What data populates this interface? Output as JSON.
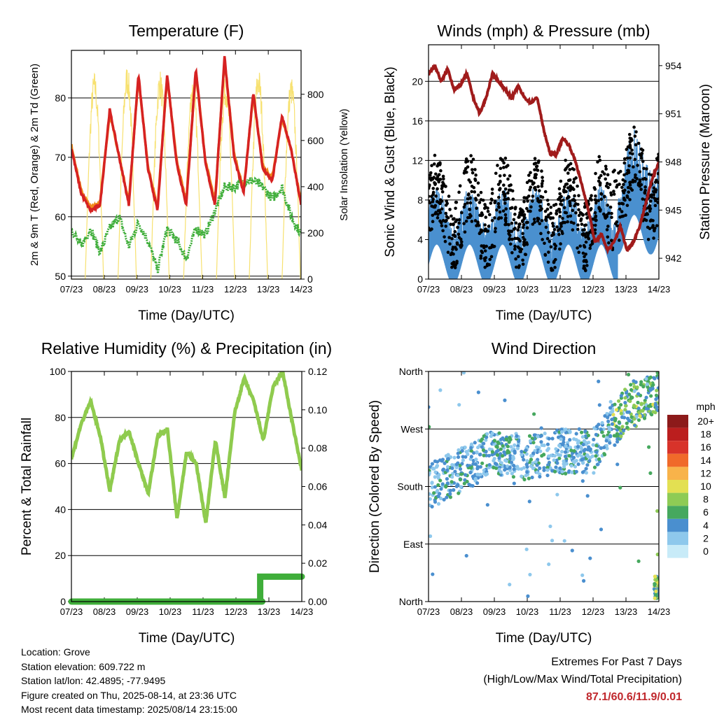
{
  "days": [
    "07/23",
    "08/23",
    "09/23",
    "10/23",
    "11/23",
    "12/23",
    "13/23",
    "14/23"
  ],
  "xlabel": "Time (Day/UTC)",
  "chart_data": [
    {
      "type": "line",
      "title": "Temperature (F)",
      "ylabel_left": "2m & 9m T (Red, Orange) & 2m Td (Green)",
      "ylabel_right": "Solar Insolation (Yellow)",
      "ylim_left": [
        49.5,
        88
      ],
      "yticks_left": [
        50,
        60,
        70,
        80
      ],
      "ylim_right": [
        0,
        990
      ],
      "yticks_right": [
        0,
        200,
        400,
        600,
        800
      ],
      "series": [
        {
          "color": "#d62222",
          "axis": "left",
          "values": [
            71.5,
            64,
            61,
            62,
            78,
            70,
            62,
            84,
            68,
            61,
            84,
            69,
            62,
            85,
            69,
            62,
            87,
            70,
            64,
            81,
            68,
            66,
            77,
            71,
            62
          ]
        },
        {
          "color": "#f08a1c",
          "axis": "left",
          "values": [
            72,
            64.5,
            61.5,
            62.5,
            77.5,
            70,
            62.5,
            83.5,
            68.5,
            61.5,
            83.5,
            69.5,
            62.5,
            84.5,
            69.5,
            62.5,
            86.5,
            70.5,
            64.5,
            80.5,
            68.5,
            66.5,
            76.5,
            71,
            62.5
          ]
        },
        {
          "color": "#3fae3a",
          "axis": "left",
          "values": [
            58,
            55,
            58,
            54,
            58,
            60,
            55,
            59,
            56,
            51,
            58,
            56,
            53,
            58,
            57,
            61,
            65,
            65,
            66,
            66,
            65,
            63,
            65,
            60,
            57
          ]
        },
        {
          "color": "#f7e170",
          "axis": "right",
          "peaks": [
            {
              "day": 0.7,
              "value": 900
            },
            {
              "day": 1.7,
              "value": 930
            },
            {
              "day": 2.7,
              "value": 910
            },
            {
              "day": 3.7,
              "value": 880
            },
            {
              "day": 4.7,
              "value": 880
            },
            {
              "day": 5.7,
              "value": 920
            },
            {
              "day": 6.7,
              "value": 880
            },
            {
              "day": 7.7,
              "value": 960
            }
          ]
        }
      ]
    },
    {
      "type": "line",
      "title": "Winds (mph) & Pressure (mb)",
      "ylabel_left": "Sonic Wind & Gust (Blue, Black)",
      "ylabel_right": "Station Pressure (Maroon)",
      "ylim_left": [
        0,
        23.7
      ],
      "yticks_left": [
        0,
        4,
        8,
        12,
        16,
        20
      ],
      "ylim_right": [
        940.7,
        955.3
      ],
      "yticks_right": [
        942,
        945,
        948,
        951,
        954
      ],
      "series": [
        {
          "color": "#a01b1b",
          "axis": "right",
          "values": [
            953.5,
            954,
            953,
            953.8,
            952.5,
            952.8,
            953.5,
            952,
            951,
            952,
            953.5,
            953,
            952.5,
            952,
            952.7,
            952,
            951.7,
            952,
            950,
            948.5,
            948.5,
            949.5,
            949,
            948,
            946.5,
            945,
            943,
            943.5,
            942.5,
            943,
            944,
            942.5,
            943,
            944,
            945.5,
            947,
            948
          ]
        },
        {
          "color": "#4a90cf",
          "axis": "left",
          "band": [
            2,
            7
          ]
        },
        {
          "color": "#000000",
          "axis": "left",
          "band": [
            4,
            12
          ]
        }
      ]
    },
    {
      "type": "line",
      "title": "Relative Humidity (%) & Precipitation (in)",
      "ylabel_left": "Percent & Total Rainfall",
      "ylim_left": [
        0,
        100
      ],
      "yticks_left": [
        0,
        20,
        40,
        60,
        80,
        100
      ],
      "ylim_right": [
        0,
        0.12
      ],
      "yticks_right": [
        "0.00",
        "0.02",
        "0.04",
        "0.06",
        "0.08",
        "0.10",
        "0.12"
      ],
      "series": [
        {
          "color": "#8fcb4e",
          "axis": "left",
          "values": [
            62,
            77,
            87,
            72,
            48,
            70,
            74,
            60,
            47,
            72,
            75,
            36,
            65,
            60,
            34,
            70,
            45,
            82,
            97,
            87,
            70,
            93,
            100,
            78,
            57
          ]
        },
        {
          "color": "#3fae3a",
          "axis": "right",
          "step_day": 5.8,
          "before": 0,
          "after": 0.013
        }
      ]
    },
    {
      "type": "scatter",
      "title": "Wind Direction",
      "ylabel_left": "Direction (Colored By Speed)",
      "yticks_left": [
        "North",
        "East",
        "South",
        "West",
        "North"
      ],
      "ylim_left": [
        0,
        360
      ],
      "legend_title": "mph",
      "legend_labels": [
        "0",
        "2",
        "4",
        "6",
        "8",
        "10",
        "12",
        "14",
        "16",
        "18",
        "20+"
      ],
      "legend_colors": [
        "#c8ebf8",
        "#8ec8ec",
        "#4a8fcf",
        "#46a85e",
        "#8ecb55",
        "#e3e052",
        "#f8b34a",
        "#f06a2a",
        "#d8332a",
        "#bb1e1e",
        "#8c1a1a"
      ],
      "direction_trend": [
        {
          "day": 0,
          "value": 180
        },
        {
          "day": 1,
          "value": 205
        },
        {
          "day": 2,
          "value": 235
        },
        {
          "day": 3,
          "value": 225
        },
        {
          "day": 4,
          "value": 235
        },
        {
          "day": 5,
          "value": 235
        },
        {
          "day": 6,
          "value": 300
        },
        {
          "day": 7,
          "value": 330
        }
      ]
    }
  ],
  "info": {
    "location": "Location: Grove",
    "elevation": "Station elevation: 609.722 m",
    "latlon": "Station lat/lon: 42.4895; -77.9495",
    "created": "Figure created on Thu, 2025-08-14, at 23:36 UTC",
    "recent": "Most recent data timestamp: 2025/08/14 23:15:00"
  },
  "extremes": {
    "line1": "Extremes For Past 7 Days",
    "line2": "(High/Low/Max Wind/Total Precipitation)",
    "values": "87.1/60.6/11.9/0.01"
  }
}
